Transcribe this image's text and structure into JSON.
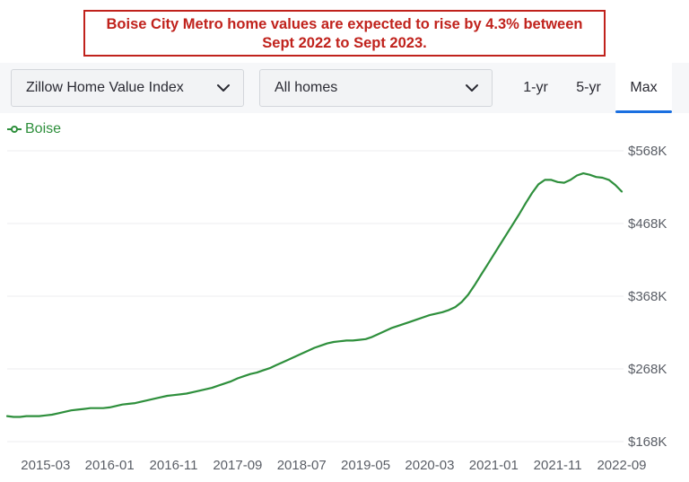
{
  "banner": {
    "line1": "Boise City Metro home values are expected to rise by 4.3% between",
    "line2": "Sept 2022 to Sept 2023."
  },
  "controls": {
    "metric_select": "Zillow Home Value Index",
    "home_type_select": "All homes",
    "tabs": [
      "1-yr",
      "5-yr",
      "Max"
    ],
    "active_tab": "Max"
  },
  "colors": {
    "banner": "#c0221c",
    "series": "#2e8f3c",
    "active_tab_underline": "#1a6fe0"
  },
  "chart_data": {
    "type": "line",
    "title": "",
    "xlabel": "",
    "ylabel": "",
    "x_tick_labels": [
      "2015-03",
      "2016-01",
      "2016-11",
      "2017-09",
      "2018-07",
      "2019-05",
      "2020-03",
      "2021-01",
      "2021-11",
      "2022-09"
    ],
    "y_tick_labels": [
      "$168K",
      "$268K",
      "$368K",
      "$468K",
      "$568K"
    ],
    "ylim": [
      168,
      568
    ],
    "y_units": "thousands USD",
    "grid": "horizontal",
    "legend": "top-left",
    "series": [
      {
        "name": "Boise",
        "points": [
          [
            "2014-09",
            203
          ],
          [
            "2014-10",
            202
          ],
          [
            "2014-11",
            202
          ],
          [
            "2014-12",
            203
          ],
          [
            "2015-01",
            203
          ],
          [
            "2015-02",
            203
          ],
          [
            "2015-03",
            204
          ],
          [
            "2015-04",
            205
          ],
          [
            "2015-05",
            207
          ],
          [
            "2015-06",
            209
          ],
          [
            "2015-07",
            211
          ],
          [
            "2015-08",
            212
          ],
          [
            "2015-09",
            213
          ],
          [
            "2015-10",
            214
          ],
          [
            "2015-11",
            214
          ],
          [
            "2015-12",
            214
          ],
          [
            "2016-01",
            215
          ],
          [
            "2016-02",
            217
          ],
          [
            "2016-03",
            219
          ],
          [
            "2016-04",
            220
          ],
          [
            "2016-05",
            221
          ],
          [
            "2016-06",
            223
          ],
          [
            "2016-07",
            225
          ],
          [
            "2016-08",
            227
          ],
          [
            "2016-09",
            229
          ],
          [
            "2016-10",
            231
          ],
          [
            "2016-11",
            232
          ],
          [
            "2016-12",
            233
          ],
          [
            "2017-01",
            234
          ],
          [
            "2017-02",
            236
          ],
          [
            "2017-03",
            238
          ],
          [
            "2017-04",
            240
          ],
          [
            "2017-05",
            242
          ],
          [
            "2017-06",
            245
          ],
          [
            "2017-07",
            248
          ],
          [
            "2017-08",
            251
          ],
          [
            "2017-09",
            255
          ],
          [
            "2017-10",
            258
          ],
          [
            "2017-11",
            261
          ],
          [
            "2017-12",
            263
          ],
          [
            "2018-01",
            266
          ],
          [
            "2018-02",
            269
          ],
          [
            "2018-03",
            273
          ],
          [
            "2018-04",
            277
          ],
          [
            "2018-05",
            281
          ],
          [
            "2018-06",
            285
          ],
          [
            "2018-07",
            289
          ],
          [
            "2018-08",
            293
          ],
          [
            "2018-09",
            297
          ],
          [
            "2018-10",
            300
          ],
          [
            "2018-11",
            303
          ],
          [
            "2018-12",
            305
          ],
          [
            "2019-01",
            306
          ],
          [
            "2019-02",
            307
          ],
          [
            "2019-03",
            307
          ],
          [
            "2019-04",
            308
          ],
          [
            "2019-05",
            309
          ],
          [
            "2019-06",
            312
          ],
          [
            "2019-07",
            316
          ],
          [
            "2019-08",
            320
          ],
          [
            "2019-09",
            324
          ],
          [
            "2019-10",
            327
          ],
          [
            "2019-11",
            330
          ],
          [
            "2019-12",
            333
          ],
          [
            "2020-01",
            336
          ],
          [
            "2020-02",
            339
          ],
          [
            "2020-03",
            342
          ],
          [
            "2020-04",
            344
          ],
          [
            "2020-05",
            346
          ],
          [
            "2020-06",
            349
          ],
          [
            "2020-07",
            353
          ],
          [
            "2020-08",
            360
          ],
          [
            "2020-09",
            370
          ],
          [
            "2020-10",
            383
          ],
          [
            "2020-11",
            397
          ],
          [
            "2020-12",
            411
          ],
          [
            "2021-01",
            425
          ],
          [
            "2021-02",
            439
          ],
          [
            "2021-03",
            453
          ],
          [
            "2021-04",
            467
          ],
          [
            "2021-05",
            481
          ],
          [
            "2021-06",
            496
          ],
          [
            "2021-07",
            510
          ],
          [
            "2021-08",
            522
          ],
          [
            "2021-09",
            528
          ],
          [
            "2021-10",
            528
          ],
          [
            "2021-11",
            525
          ],
          [
            "2021-12",
            524
          ],
          [
            "2022-01",
            528
          ],
          [
            "2022-02",
            534
          ],
          [
            "2022-03",
            537
          ],
          [
            "2022-04",
            535
          ],
          [
            "2022-05",
            532
          ],
          [
            "2022-06",
            531
          ],
          [
            "2022-07",
            528
          ],
          [
            "2022-08",
            521
          ],
          [
            "2022-09",
            512
          ]
        ]
      }
    ]
  }
}
